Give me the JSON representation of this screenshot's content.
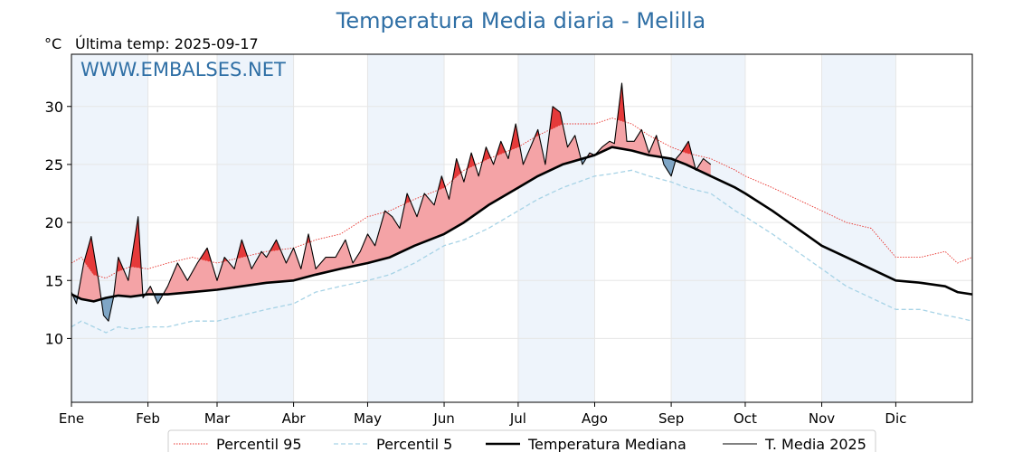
{
  "title": "Temperatura Media diaria - Melilla",
  "unit_label": "°C",
  "last_temp_label": "Última temp: 2025-09-17",
  "watermark": "WWW.EMBALSES.NET",
  "colors": {
    "title": "#2f6fa5",
    "p95": "#e8322c",
    "p5": "#a7d3e6",
    "median": "#000000",
    "t2025": "#000000",
    "above_fill": "#f4a3a6",
    "above_p95_fill": "#e53a3a",
    "below_fill": "#7fa6c6",
    "month_band": "#eef4fb"
  },
  "chart_data": {
    "type": "line",
    "xlabel": "",
    "ylabel": "°C",
    "ylim": [
      4.5,
      34.5
    ],
    "xlim_day_of_year": [
      1,
      366
    ],
    "yticks": [
      10,
      15,
      20,
      25,
      30
    ],
    "grid": true,
    "legend_position": "bottom",
    "month_ticks": [
      {
        "label": "Ene",
        "day": 1
      },
      {
        "label": "Feb",
        "day": 32
      },
      {
        "label": "Mar",
        "day": 60
      },
      {
        "label": "Abr",
        "day": 91
      },
      {
        "label": "May",
        "day": 121
      },
      {
        "label": "Jun",
        "day": 152
      },
      {
        "label": "Jul",
        "day": 182
      },
      {
        "label": "Ago",
        "day": 213
      },
      {
        "label": "Sep",
        "day": 244
      },
      {
        "label": "Oct",
        "day": 274
      },
      {
        "label": "Nov",
        "day": 305
      },
      {
        "label": "Dic",
        "day": 335
      }
    ],
    "series": [
      {
        "name": "Percentil 95",
        "style": "dotted",
        "x": [
          1,
          5,
          10,
          15,
          20,
          25,
          32,
          40,
          50,
          60,
          70,
          80,
          91,
          100,
          110,
          121,
          130,
          140,
          152,
          160,
          170,
          182,
          190,
          200,
          213,
          220,
          228,
          235,
          244,
          250,
          260,
          270,
          274,
          285,
          295,
          305,
          315,
          325,
          335,
          345,
          355,
          360,
          366
        ],
        "y": [
          16.5,
          17.0,
          15.5,
          15.2,
          15.8,
          16.2,
          16.0,
          16.5,
          17.0,
          16.5,
          17.0,
          17.5,
          17.8,
          18.5,
          19.0,
          20.5,
          21.0,
          22.0,
          23.0,
          24.5,
          25.5,
          26.5,
          27.5,
          28.5,
          28.5,
          29.0,
          28.5,
          27.5,
          26.5,
          26.0,
          25.5,
          24.5,
          24.0,
          23.0,
          22.0,
          21.0,
          20.0,
          19.5,
          17.0,
          17.0,
          17.5,
          16.5,
          17.0
        ]
      },
      {
        "name": "Percentil 5",
        "style": "dashed",
        "x": [
          1,
          5,
          10,
          15,
          20,
          25,
          32,
          40,
          50,
          60,
          70,
          80,
          91,
          100,
          110,
          121,
          130,
          140,
          152,
          160,
          170,
          182,
          190,
          200,
          213,
          220,
          228,
          235,
          244,
          250,
          260,
          270,
          274,
          285,
          295,
          305,
          315,
          325,
          335,
          345,
          355,
          360,
          366
        ],
        "y": [
          11.0,
          11.5,
          11.0,
          10.5,
          11.0,
          10.8,
          11.0,
          11.0,
          11.5,
          11.5,
          12.0,
          12.5,
          13.0,
          14.0,
          14.5,
          15.0,
          15.5,
          16.5,
          18.0,
          18.5,
          19.5,
          21.0,
          22.0,
          23.0,
          24.0,
          24.2,
          24.5,
          24.0,
          23.5,
          23.0,
          22.5,
          21.0,
          20.5,
          19.0,
          17.5,
          16.0,
          14.5,
          13.5,
          12.5,
          12.5,
          12.0,
          11.8,
          11.5
        ]
      },
      {
        "name": "Temperatura Mediana",
        "style": "solid-thick",
        "x": [
          1,
          5,
          10,
          15,
          20,
          25,
          32,
          40,
          50,
          60,
          70,
          80,
          91,
          100,
          110,
          121,
          130,
          140,
          152,
          160,
          170,
          182,
          190,
          200,
          213,
          220,
          228,
          235,
          244,
          250,
          260,
          270,
          274,
          285,
          295,
          305,
          315,
          325,
          335,
          345,
          355,
          360,
          366
        ],
        "y": [
          13.8,
          13.4,
          13.2,
          13.5,
          13.7,
          13.6,
          13.8,
          13.8,
          14.0,
          14.2,
          14.5,
          14.8,
          15.0,
          15.5,
          16.0,
          16.5,
          17.0,
          18.0,
          19.0,
          20.0,
          21.5,
          23.0,
          24.0,
          25.0,
          25.8,
          26.5,
          26.2,
          25.8,
          25.5,
          25.0,
          24.0,
          23.0,
          22.5,
          21.0,
          19.5,
          18.0,
          17.0,
          16.0,
          15.0,
          14.8,
          14.5,
          14.0,
          13.8
        ]
      },
      {
        "name": "T. Media 2025",
        "style": "solid-thin",
        "x": [
          1,
          3,
          6,
          9,
          12,
          14,
          16,
          18,
          20,
          24,
          28,
          30,
          33,
          36,
          40,
          44,
          48,
          52,
          56,
          60,
          63,
          67,
          70,
          74,
          78,
          80,
          84,
          88,
          91,
          94,
          97,
          100,
          104,
          108,
          112,
          115,
          118,
          121,
          124,
          128,
          131,
          134,
          137,
          141,
          144,
          148,
          151,
          154,
          157,
          160,
          163,
          166,
          169,
          172,
          175,
          178,
          181,
          184,
          187,
          190,
          193,
          196,
          199,
          202,
          205,
          208,
          211,
          213,
          216,
          219,
          221,
          224,
          226,
          229,
          232,
          235,
          238,
          241,
          244,
          246,
          248,
          251,
          254,
          257,
          260
        ],
        "y": [
          14.0,
          13.0,
          16.5,
          18.8,
          15.0,
          12.0,
          11.5,
          13.5,
          17.0,
          15.0,
          20.5,
          13.5,
          14.5,
          13.0,
          14.5,
          16.5,
          15.0,
          16.5,
          17.8,
          15.0,
          17.0,
          16.0,
          18.5,
          16.0,
          17.5,
          17.0,
          18.5,
          16.5,
          17.8,
          16.0,
          19.0,
          16.0,
          17.0,
          17.0,
          18.5,
          16.5,
          17.5,
          19.0,
          18.0,
          21.0,
          20.5,
          19.5,
          22.5,
          20.5,
          22.5,
          21.5,
          24.0,
          22.0,
          25.5,
          23.5,
          26.0,
          24.0,
          26.5,
          25.0,
          27.0,
          25.5,
          28.5,
          25.0,
          26.5,
          28.0,
          25.0,
          30.0,
          29.5,
          26.5,
          27.5,
          25.0,
          26.0,
          25.8,
          26.5,
          27.0,
          26.8,
          32.0,
          27.0,
          27.0,
          28.0,
          26.0,
          27.5,
          25.0,
          24.0,
          25.5,
          26.0,
          27.0,
          24.5,
          25.5,
          25.0
        ]
      }
    ]
  },
  "legend": [
    {
      "label": "Percentil 95",
      "style": "dotted"
    },
    {
      "label": "Percentil 5",
      "style": "dashed"
    },
    {
      "label": "Temperatura Mediana",
      "style": "solid-thick"
    },
    {
      "label": "T. Media 2025",
      "style": "solid-thin"
    }
  ]
}
